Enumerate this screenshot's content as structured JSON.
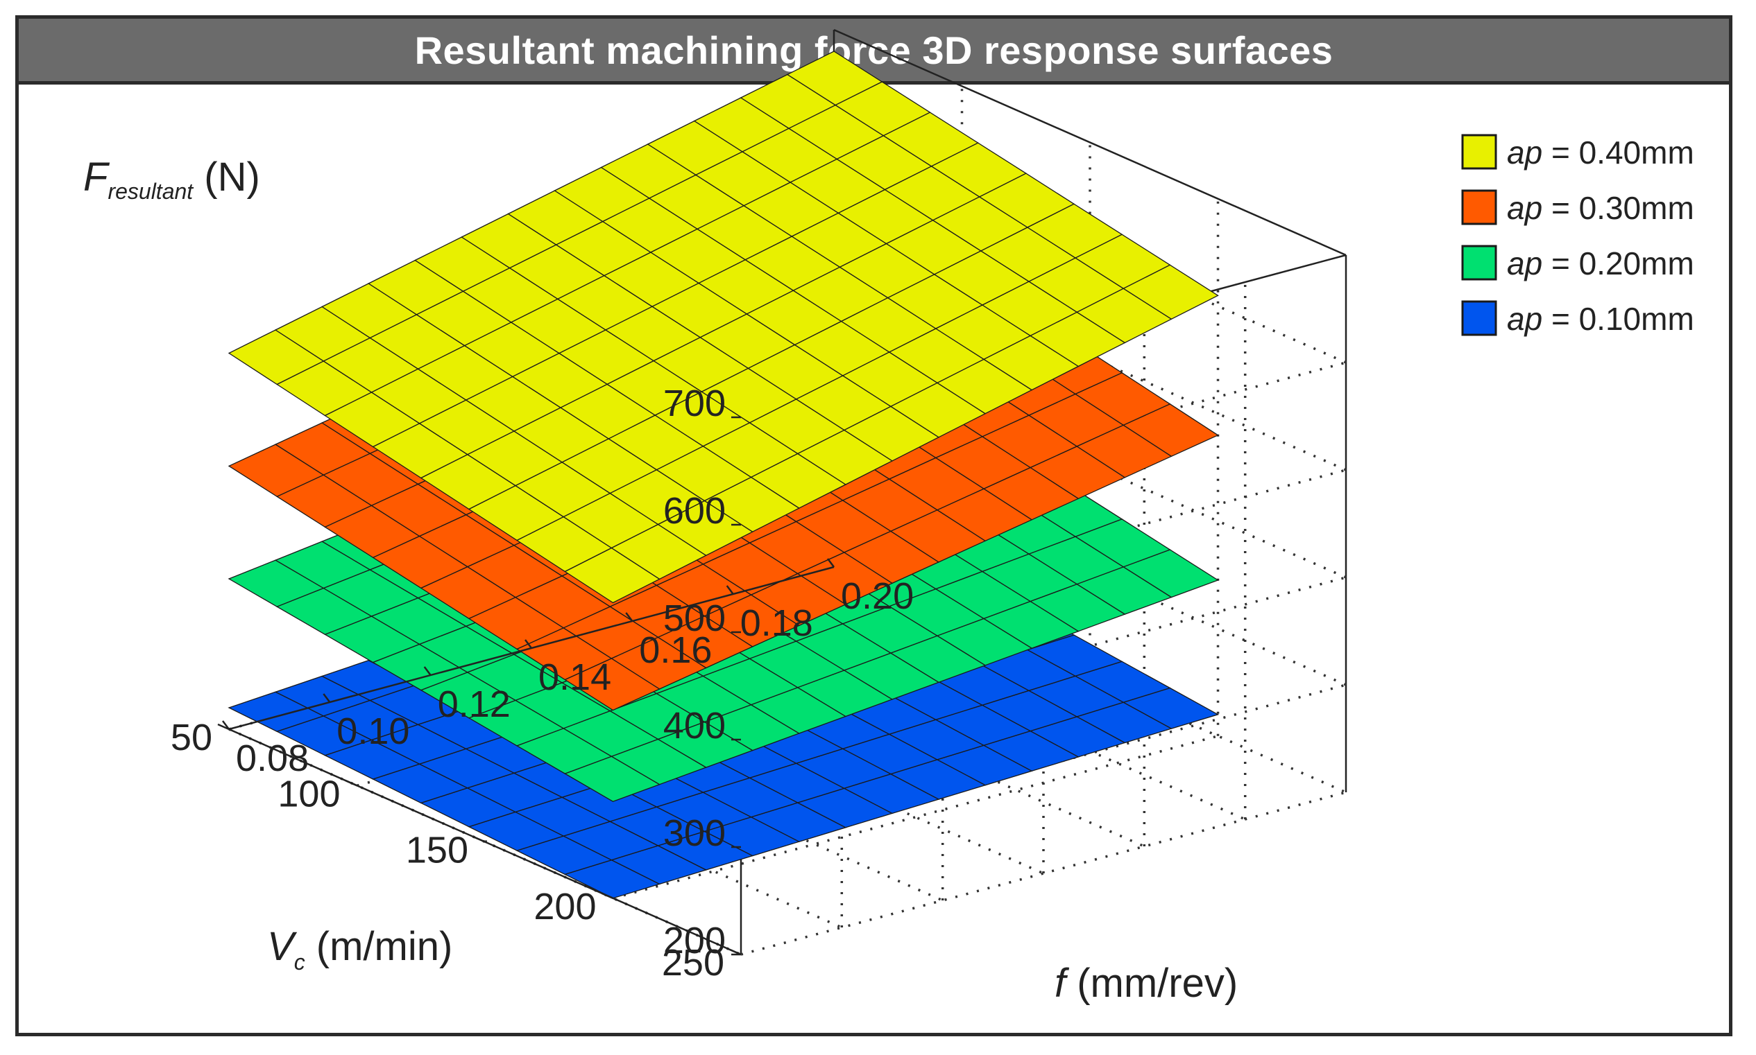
{
  "title": "Resultant machining force 3D response surfaces",
  "chart_data": {
    "type": "surface3d",
    "title": "Resultant machining force 3D response surfaces",
    "zlabel": {
      "main": "F",
      "subscript": "resultant",
      "unit": " (N)"
    },
    "ylabel": {
      "main": "V",
      "subscript": "c",
      "unit": " (m/min)"
    },
    "xlabel": {
      "main": "f",
      "unit": " (mm/rev)"
    },
    "x_axis": {
      "name": "f (mm/rev)",
      "range": [
        0.08,
        0.2
      ],
      "ticks": [
        0.08,
        0.1,
        0.12,
        0.14,
        0.16,
        0.18,
        0.2
      ],
      "tick_labels": [
        "0.08",
        "0.10",
        "0.12",
        "0.14",
        "0.16",
        "0.18",
        "0.20"
      ]
    },
    "y_axis": {
      "name": "Vc (m/min)",
      "range": [
        50,
        250
      ],
      "ticks": [
        50,
        100,
        150,
        200,
        250
      ],
      "tick_labels": [
        "50",
        "100",
        "150",
        "200",
        "250"
      ]
    },
    "z_axis": {
      "name": "F resultant (N)",
      "range": [
        200,
        700
      ],
      "ticks": [
        200,
        300,
        400,
        500,
        600,
        700
      ],
      "tick_labels": [
        "200",
        "300",
        "400",
        "500",
        "600",
        "700"
      ]
    },
    "grid": true,
    "legend_position": "top-right",
    "series": [
      {
        "label_var": "ap",
        "label_value": " = 0.40mm",
        "color": "#e8f000",
        "corners": {
          "f0.08_v200": 475,
          "f0.08_v50": 550,
          "f0.20_v200": 610,
          "f0.20_v50": 680
        }
      },
      {
        "label_var": "ap",
        "label_value": " = 0.30mm",
        "color": "#ff5a00",
        "corners": {
          "f0.08_v200": 375,
          "f0.08_v50": 445,
          "f0.20_v200": 480,
          "f0.20_v50": 555
        }
      },
      {
        "label_var": "ap",
        "label_value": " = 0.20mm",
        "color": "#00e070",
        "corners": {
          "f0.08_v200": 290,
          "f0.08_v50": 340,
          "f0.20_v200": 345,
          "f0.20_v50": 415
        }
      },
      {
        "label_var": "ap",
        "label_value": " = 0.10mm",
        "color": "#0055ee",
        "corners": {
          "f0.08_v200": 200,
          "f0.08_v50": 220,
          "f0.20_v200": 220,
          "f0.20_v50": 260
        }
      }
    ]
  }
}
